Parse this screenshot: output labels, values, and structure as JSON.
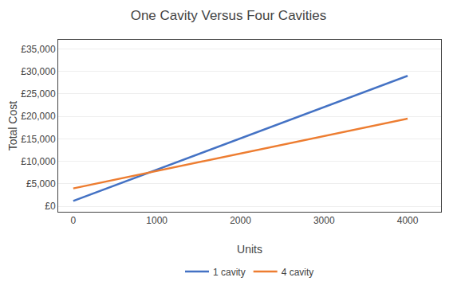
{
  "chart_data": {
    "type": "line",
    "title": "One Cavity Versus Four Cavities",
    "xlabel": "Units",
    "ylabel": "Total Cost",
    "series": [
      {
        "name": "1 cavity",
        "color": "#4472C4",
        "x": [
          0,
          4000
        ],
        "values": [
          1200,
          29000
        ]
      },
      {
        "name": "4 cavity",
        "color": "#ED7D31",
        "x": [
          0,
          4000
        ],
        "values": [
          4000,
          19500
        ]
      }
    ],
    "xlim": [
      -180,
      4400
    ],
    "ylim": [
      -1200,
      37000
    ],
    "xticks": [
      0,
      1000,
      2000,
      3000,
      4000
    ],
    "yticks": [
      {
        "value": 0,
        "label": "£0"
      },
      {
        "value": 5000,
        "label": "£5,000"
      },
      {
        "value": 10000,
        "label": "£10,000"
      },
      {
        "value": 15000,
        "label": "£15,000"
      },
      {
        "value": 20000,
        "label": "£20,000"
      },
      {
        "value": 25000,
        "label": "£25,000"
      },
      {
        "value": 30000,
        "label": "£30,000"
      },
      {
        "value": 35000,
        "label": "£35,000"
      }
    ],
    "grid": "y",
    "legend": "bottom"
  }
}
